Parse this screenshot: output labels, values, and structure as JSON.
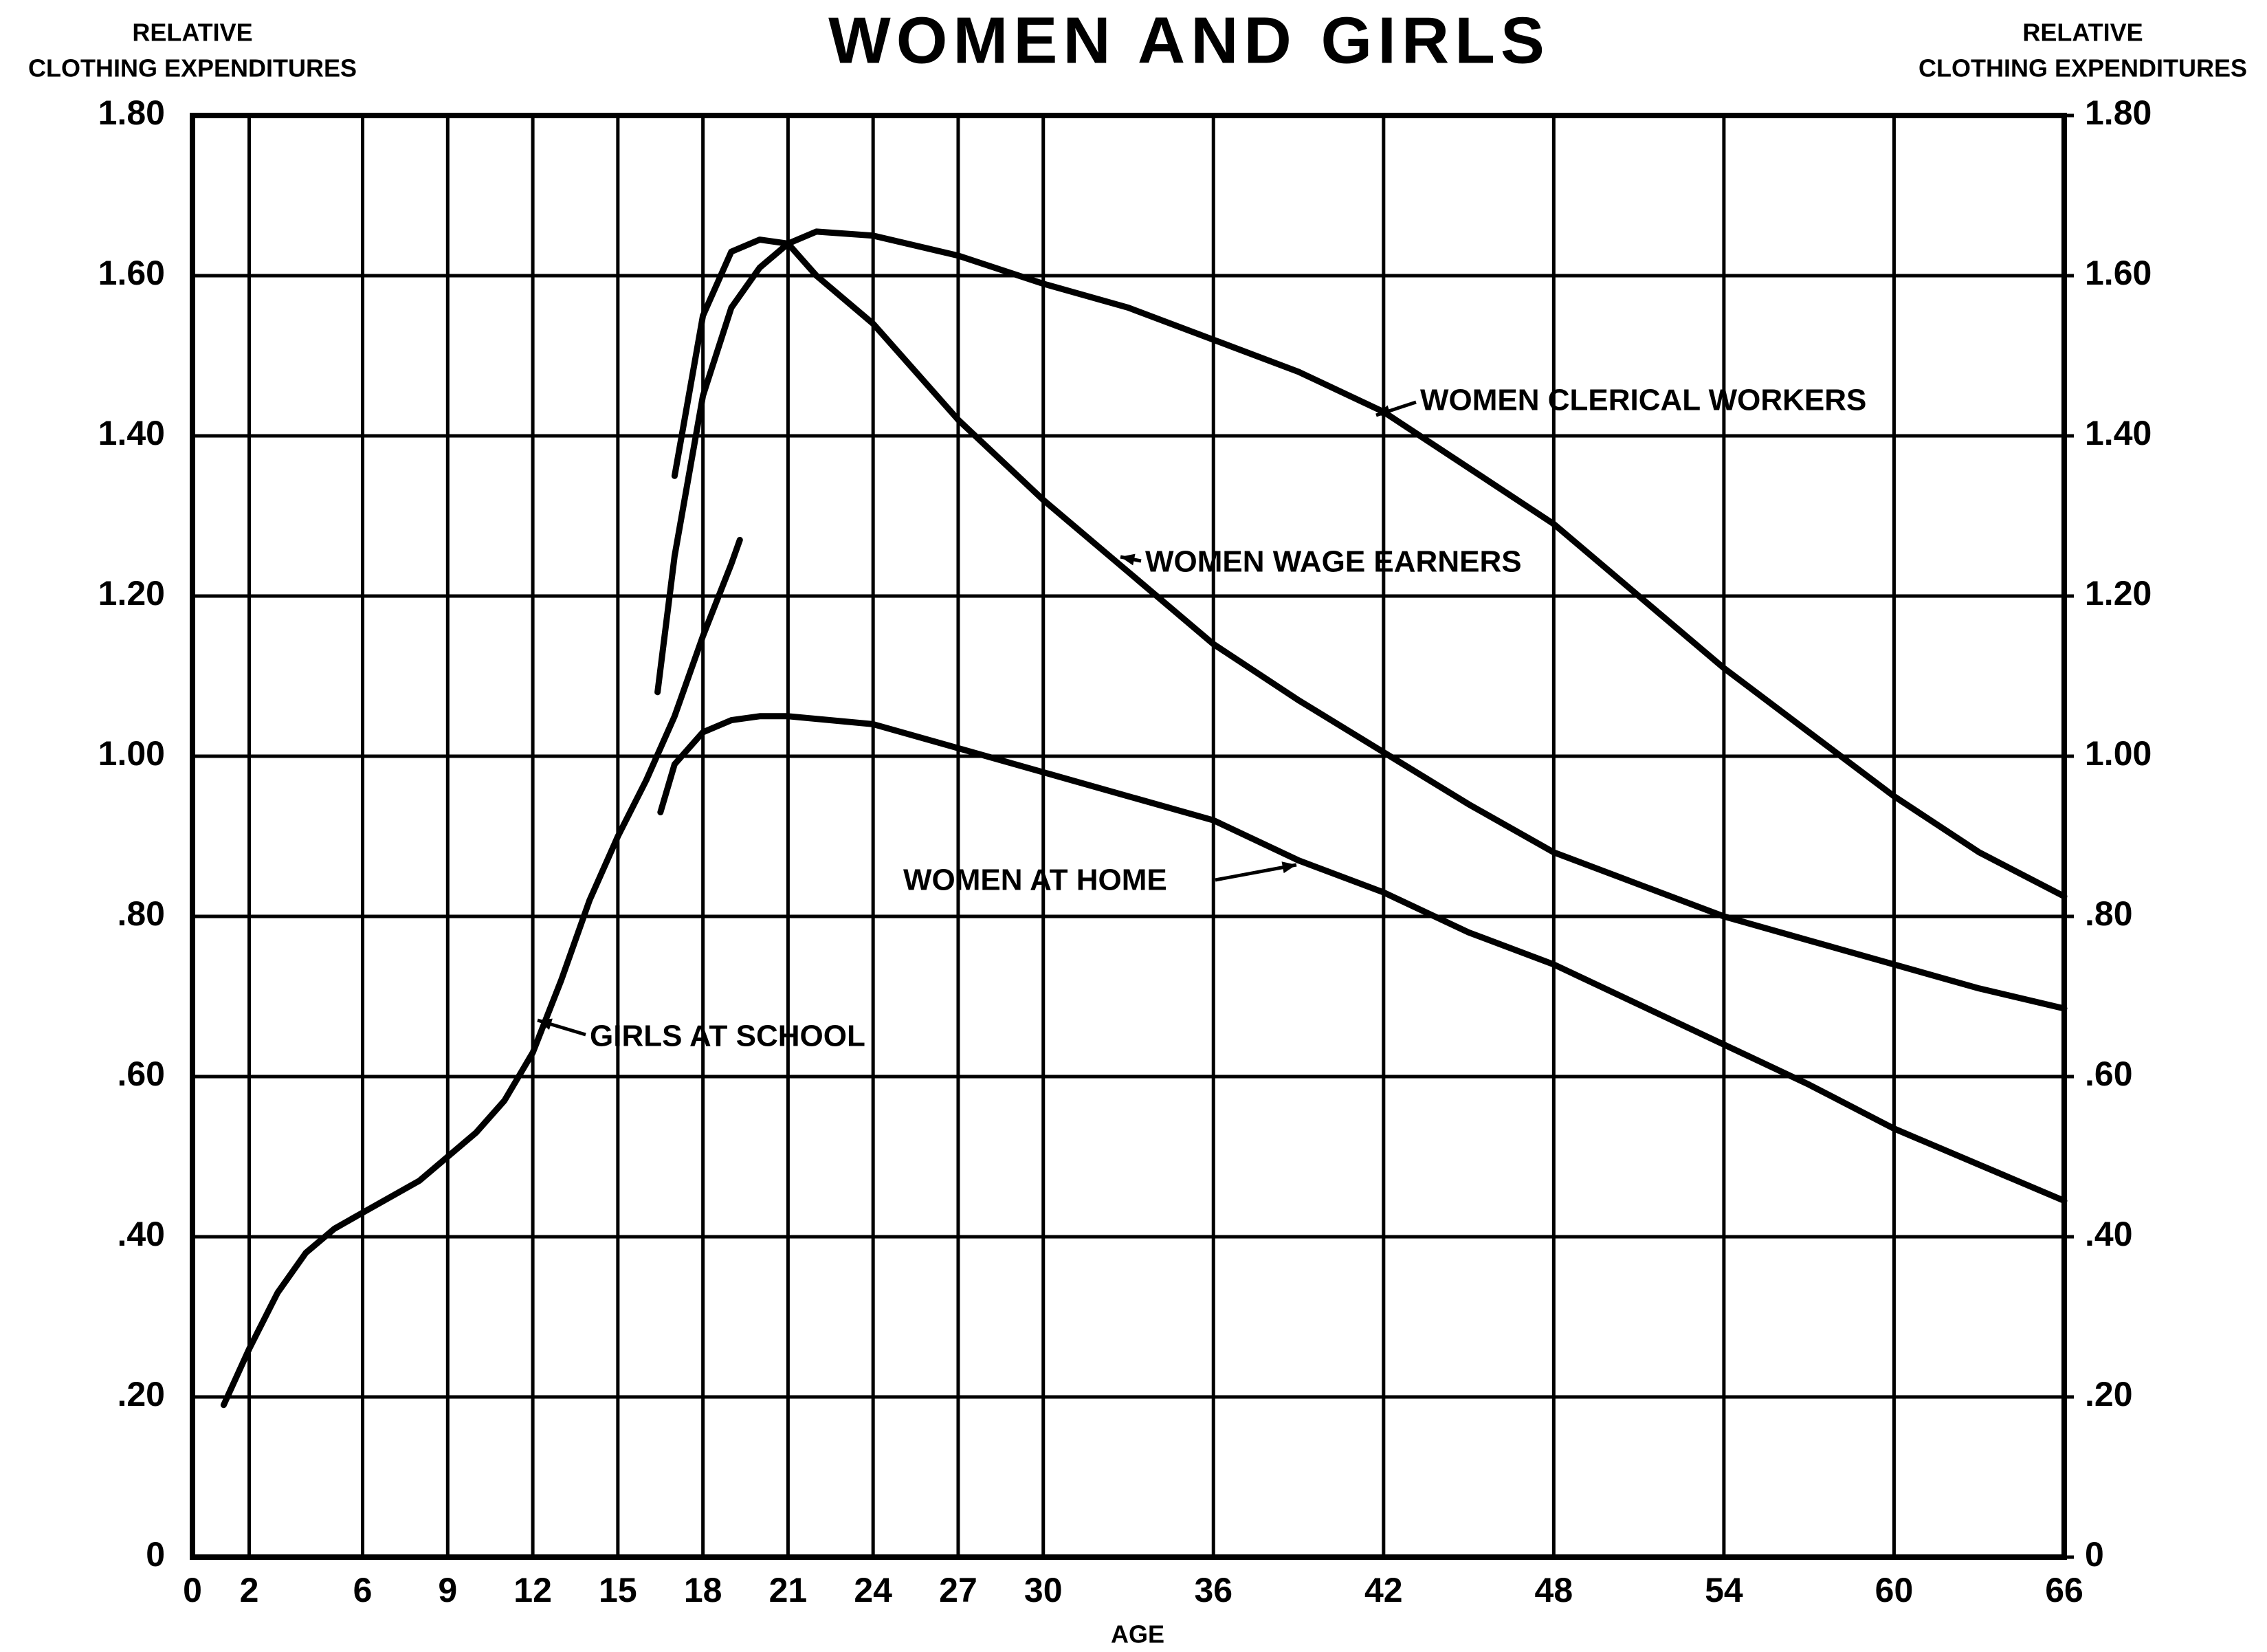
{
  "chart_data": {
    "type": "line",
    "title": "WOMEN AND GIRLS",
    "ylabel": [
      "RELATIVE",
      "CLOTHING EXPENDITURES"
    ],
    "y2label": [
      "RELATIVE",
      "CLOTHING EXPENDITURES"
    ],
    "xlabel": "AGE",
    "xlim": [
      0,
      66
    ],
    "xticks": [
      0,
      2,
      6,
      9,
      12,
      15,
      18,
      21,
      24,
      27,
      30,
      36,
      42,
      48,
      54,
      60,
      66
    ],
    "ylim": [
      0,
      1.8
    ],
    "yticks": [
      0,
      {
        "value": 0.2,
        "label": ".20"
      },
      {
        "value": 0.4,
        "label": ".40"
      },
      {
        "value": 0.6,
        "label": ".60"
      },
      {
        "value": 0.8,
        "label": ".80"
      },
      {
        "value": 1.0,
        "label": "1.00"
      },
      {
        "value": 1.2,
        "label": "1.20"
      },
      {
        "value": 1.4,
        "label": "1.40"
      },
      {
        "value": 1.6,
        "label": "1.60"
      },
      {
        "value": 1.8,
        "label": "1.80"
      }
    ],
    "y2lim": [
      0,
      1.8
    ],
    "y2ticks": [
      0,
      {
        "value": 0.2,
        "label": ".20"
      },
      {
        "value": 0.4,
        "label": ".40"
      },
      {
        "value": 0.6,
        "label": ".60"
      },
      {
        "value": 0.8,
        "label": ".80"
      },
      {
        "value": 1.0,
        "label": "1.00"
      },
      {
        "value": 1.2,
        "label": "1.20"
      },
      {
        "value": 1.4,
        "label": "1.40"
      },
      {
        "value": 1.6,
        "label": "1.60"
      },
      {
        "value": 1.8,
        "label": "1.80"
      }
    ],
    "grid": true,
    "series": [
      {
        "name": "WOMEN CLERICAL WORKERS",
        "color": "#000000",
        "x": [
          16.4,
          17,
          18,
          19,
          20,
          21,
          22,
          24,
          27,
          30,
          33,
          36,
          39,
          42,
          45,
          48,
          51,
          54,
          57,
          60,
          63,
          66
        ],
        "values": [
          1.08,
          1.25,
          1.45,
          1.56,
          1.61,
          1.64,
          1.655,
          1.65,
          1.625,
          1.59,
          1.56,
          1.52,
          1.48,
          1.43,
          1.36,
          1.29,
          1.2,
          1.11,
          1.03,
          0.95,
          0.88,
          0.825
        ]
      },
      {
        "name": "WOMEN WAGE EARNERS",
        "color": "#000000",
        "x": [
          17,
          18,
          19,
          20,
          21,
          22,
          24,
          27,
          30,
          33,
          36,
          39,
          42,
          45,
          48,
          51,
          54,
          57,
          60,
          63,
          66
        ],
        "values": [
          1.35,
          1.55,
          1.63,
          1.645,
          1.64,
          1.6,
          1.54,
          1.42,
          1.32,
          1.23,
          1.14,
          1.07,
          1.005,
          0.94,
          0.88,
          0.84,
          0.8,
          0.77,
          0.74,
          0.71,
          0.685
        ]
      },
      {
        "name": "WOMEN AT HOME",
        "color": "#000000",
        "x": [
          16.5,
          17,
          18,
          19,
          20,
          21,
          24,
          27,
          30,
          33,
          36,
          39,
          42,
          45,
          48,
          51,
          54,
          57,
          60,
          63,
          66
        ],
        "values": [
          0.93,
          0.99,
          1.03,
          1.045,
          1.05,
          1.05,
          1.04,
          1.01,
          0.98,
          0.95,
          0.92,
          0.87,
          0.83,
          0.78,
          0.74,
          0.69,
          0.64,
          0.59,
          0.535,
          0.49,
          0.445
        ]
      },
      {
        "name": "GIRLS AT SCHOOL",
        "color": "#000000",
        "x": [
          1.1,
          2,
          3,
          4,
          5,
          6,
          8,
          10,
          11,
          12,
          13,
          14,
          15,
          16,
          17,
          18,
          19,
          19.3
        ],
        "values": [
          0.19,
          0.26,
          0.33,
          0.38,
          0.41,
          0.43,
          0.47,
          0.53,
          0.57,
          0.63,
          0.72,
          0.82,
          0.9,
          0.97,
          1.05,
          1.15,
          1.24,
          1.27
        ]
      }
    ]
  }
}
